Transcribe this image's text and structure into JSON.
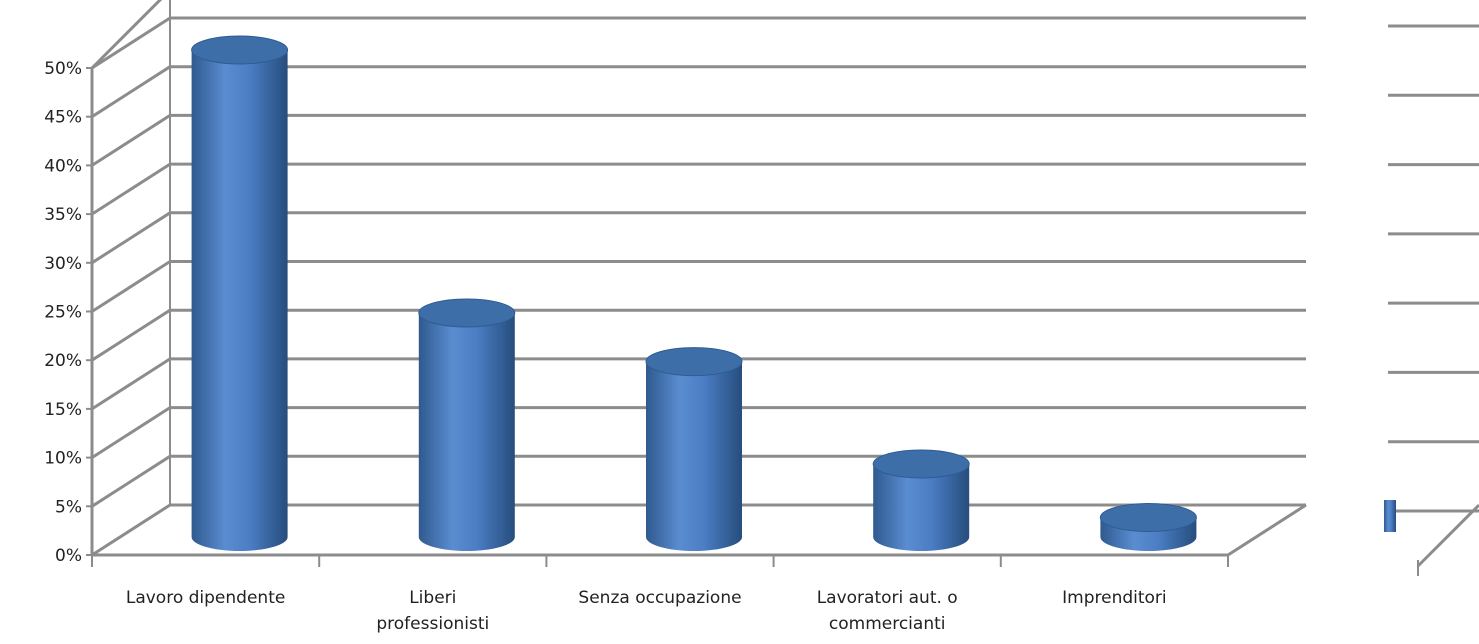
{
  "chart_data": [
    {
      "type": "bar",
      "style": "3d-cylinder",
      "categories": [
        [
          "Lavoro dipendente"
        ],
        [
          "Liberi",
          "professionisti"
        ],
        [
          "Senza occupazione"
        ],
        [
          "Lavoratori aut. o",
          "commercianti"
        ],
        [
          "Imprenditori"
        ]
      ],
      "values": [
        50,
        23,
        18,
        7.5,
        2
      ],
      "y_ticks": [
        "0%",
        "5%",
        "10%",
        "15%",
        "20%",
        "25%",
        "30%",
        "35%",
        "40%",
        "45%",
        "50%"
      ],
      "ylim": [
        0,
        50
      ],
      "grid": true,
      "title": "",
      "xlabel": "",
      "ylabel": ""
    },
    {
      "type": "bar",
      "style": "3d-cylinder",
      "note_visibility": "partially-cropped",
      "values": [
        2
      ],
      "grid": true
    }
  ],
  "colors": {
    "bar_body": "#4f81bd",
    "bar_top": "#3e6ea8",
    "grid": "#8c8c8c",
    "axis_text": "#222222"
  }
}
